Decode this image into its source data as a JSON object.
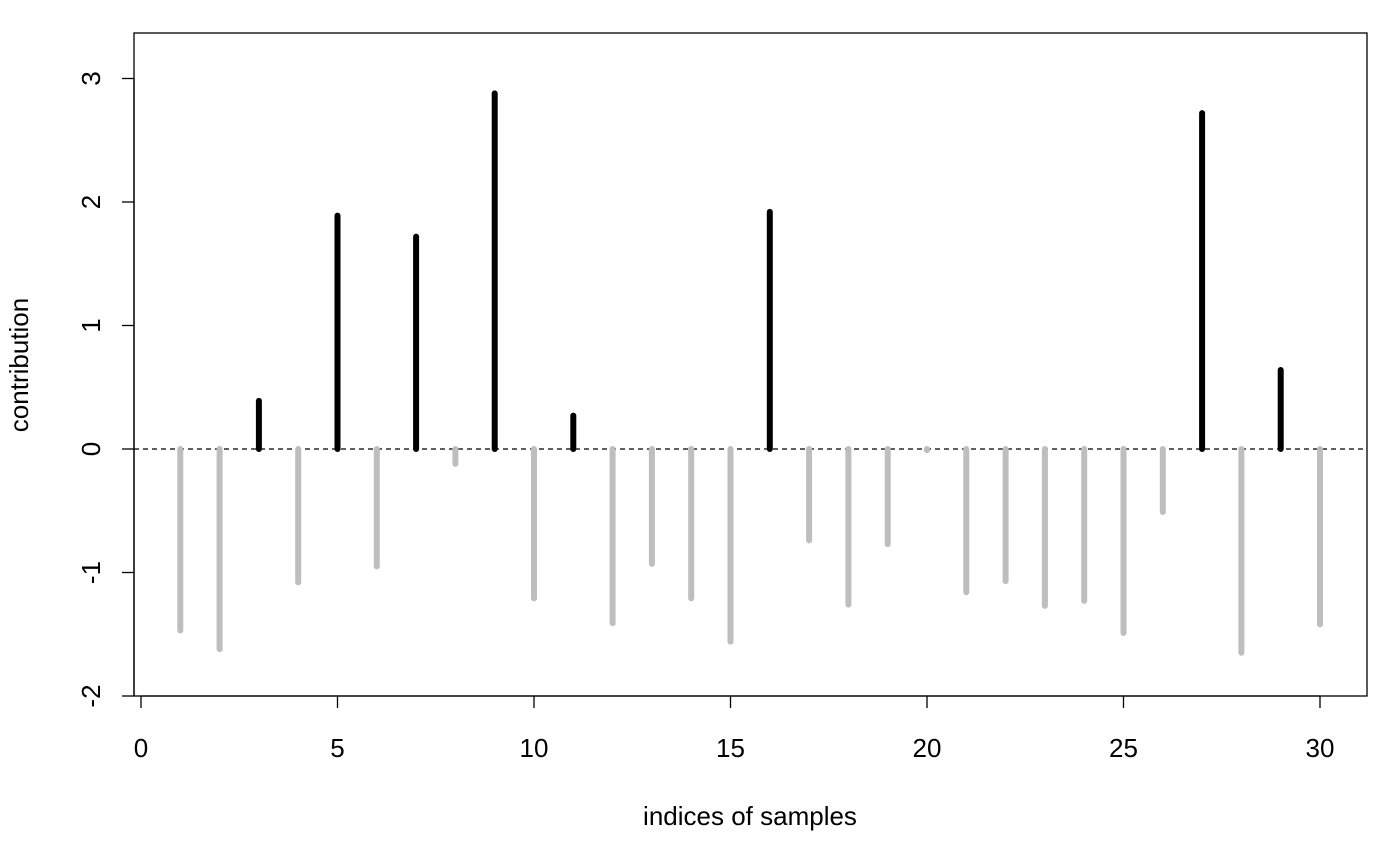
{
  "chart_data": {
    "type": "bar",
    "title": "",
    "xlabel": "indices of samples",
    "ylabel": "contribution",
    "xlim": [
      -0.2,
      31.0
    ],
    "ylim": [
      -2.0,
      3.35
    ],
    "x_ticks": [
      0,
      5,
      10,
      15,
      20,
      25,
      30
    ],
    "y_ticks": [
      -2,
      -1,
      0,
      1,
      2,
      3
    ],
    "grid": false,
    "legend": "none",
    "reference_line": {
      "y": 0,
      "style": "dashed"
    },
    "colors": {
      "positive": "#000000",
      "negative": "#bebebe",
      "axis": "#000000"
    },
    "x": [
      1,
      2,
      3,
      4,
      5,
      6,
      7,
      8,
      9,
      10,
      11,
      12,
      13,
      14,
      15,
      16,
      17,
      18,
      19,
      20,
      21,
      22,
      23,
      24,
      25,
      26,
      27,
      28,
      29,
      30
    ],
    "values": [
      -1.47,
      -1.62,
      0.39,
      -1.08,
      1.89,
      -0.95,
      1.72,
      -0.12,
      2.88,
      -1.21,
      0.27,
      -1.41,
      -0.93,
      -1.21,
      -1.56,
      1.92,
      -0.74,
      -1.26,
      -0.77,
      -0.01,
      -1.16,
      -1.07,
      -1.27,
      -1.23,
      -1.49,
      -0.51,
      2.72,
      -1.65,
      0.64,
      -1.42
    ]
  }
}
